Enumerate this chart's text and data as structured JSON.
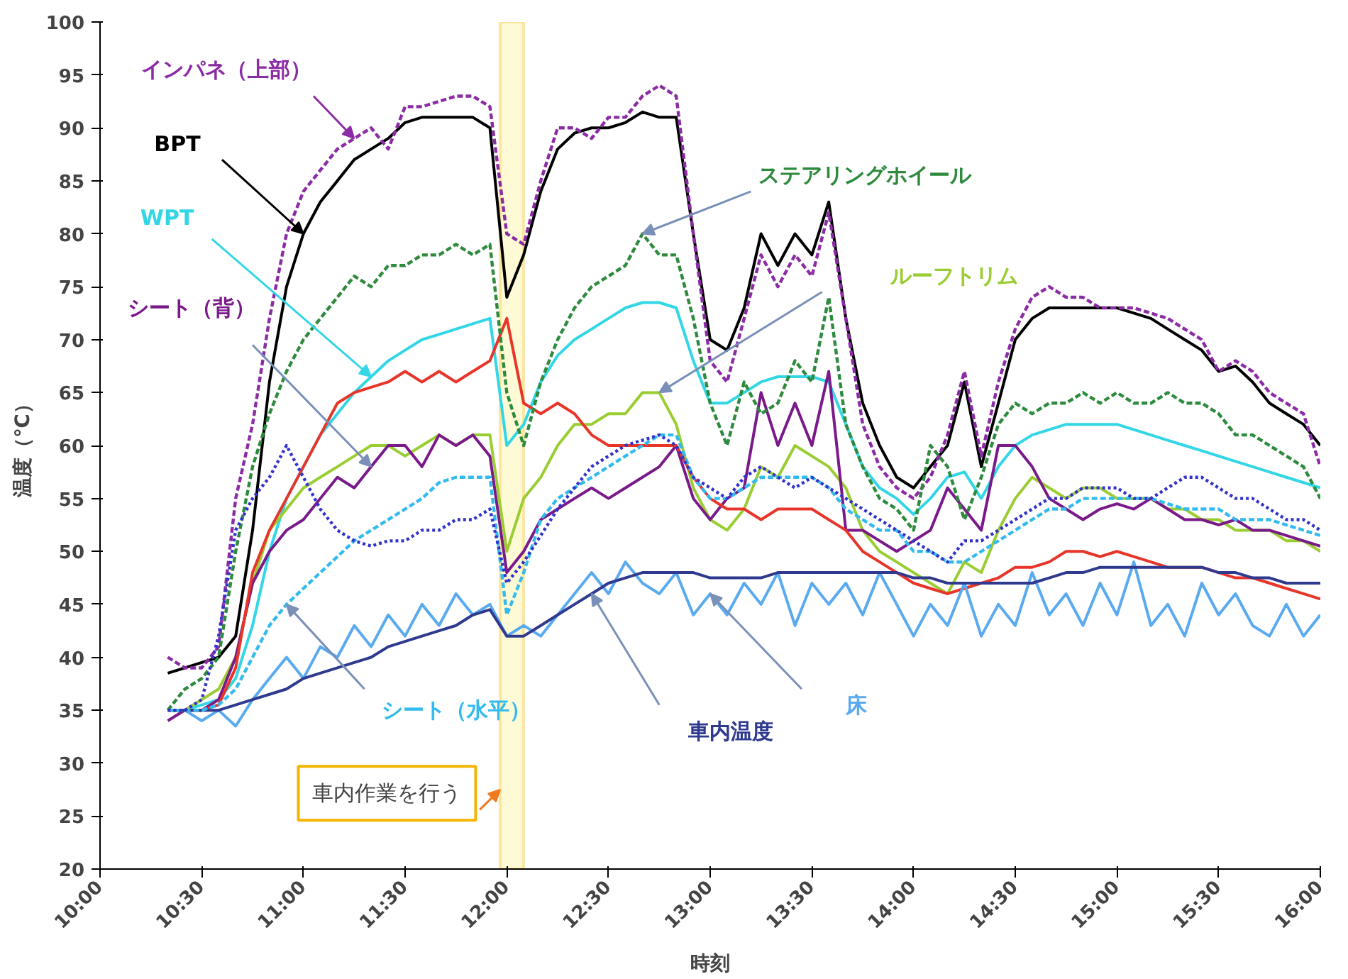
{
  "chart_data": {
    "type": "line",
    "xlabel": "時刻",
    "ylabel": "温度（℃）",
    "xlim": [
      10,
      16
    ],
    "ylim": [
      20,
      100
    ],
    "xticks": [
      {
        "value": 10,
        "label": "10:00"
      },
      {
        "value": 10.5,
        "label": "10:30"
      },
      {
        "value": 11,
        "label": "11:00"
      },
      {
        "value": 11.5,
        "label": "11:30"
      },
      {
        "value": 12,
        "label": "12:00"
      },
      {
        "value": 12.5,
        "label": "12:30"
      },
      {
        "value": 13,
        "label": "13:00"
      },
      {
        "value": 13.5,
        "label": "13:30"
      },
      {
        "value": 14,
        "label": "14:00"
      },
      {
        "value": 14.5,
        "label": "14:30"
      },
      {
        "value": 15,
        "label": "15:00"
      },
      {
        "value": 15.5,
        "label": "15:30"
      },
      {
        "value": 16,
        "label": "16:00"
      }
    ],
    "yticks": [
      20,
      25,
      30,
      35,
      40,
      45,
      50,
      55,
      60,
      65,
      70,
      75,
      80,
      85,
      90,
      95,
      100
    ],
    "grid": false,
    "x": [
      10.333,
      10.417,
      10.5,
      10.583,
      10.667,
      10.75,
      10.833,
      10.917,
      11,
      11.083,
      11.167,
      11.25,
      11.333,
      11.417,
      11.5,
      11.583,
      11.667,
      11.75,
      11.833,
      11.917,
      12,
      12.083,
      12.167,
      12.25,
      12.333,
      12.417,
      12.5,
      12.583,
      12.667,
      12.75,
      12.833,
      12.917,
      13,
      13.083,
      13.167,
      13.25,
      13.333,
      13.417,
      13.5,
      13.583,
      13.667,
      13.75,
      13.833,
      13.917,
      14,
      14.083,
      14.167,
      14.25,
      14.333,
      14.417,
      14.5,
      14.583,
      14.667,
      14.75,
      14.833,
      14.917,
      15,
      15.083,
      15.167,
      15.25,
      15.333,
      15.417,
      15.5,
      15.583,
      15.667,
      15.75,
      15.833,
      15.917,
      16
    ],
    "series": [
      {
        "name": "インパネ（上部）",
        "color": "#8b2ca5",
        "line_style": "dashed",
        "values": [
          40,
          39,
          39,
          41,
          55,
          62,
          72,
          80,
          84,
          86,
          88,
          89,
          90,
          88,
          92,
          92,
          92.5,
          93,
          93,
          92,
          80,
          79,
          85,
          90,
          90,
          89,
          91,
          91,
          93,
          94,
          93,
          80,
          68,
          66,
          72,
          78,
          75,
          78,
          76,
          82,
          72,
          62,
          58,
          56,
          55,
          57,
          61,
          67,
          59,
          66,
          71,
          74,
          75,
          74,
          74,
          73,
          73,
          73,
          72.5,
          72,
          71,
          70,
          67,
          68,
          67,
          65,
          64,
          63,
          58
        ]
      },
      {
        "name": "BPT",
        "color": "#000000",
        "line_style": "solid",
        "values": [
          38.5,
          39,
          39.5,
          40,
          42,
          52,
          66,
          75,
          80,
          83,
          85,
          87,
          88,
          89,
          90.5,
          91,
          91,
          91,
          91,
          90,
          74,
          78,
          84,
          88,
          89.5,
          90,
          90,
          90.5,
          91.5,
          91,
          91,
          80,
          70,
          69,
          73,
          80,
          77,
          80,
          78,
          83,
          72,
          64,
          60,
          57,
          56,
          58,
          60,
          66,
          58,
          64,
          70,
          72,
          73,
          73,
          73,
          73,
          73,
          72.5,
          72,
          71,
          70,
          69,
          67,
          67.5,
          66,
          64,
          63,
          62,
          60
        ]
      },
      {
        "name": "ステアリングホイール",
        "color": "#2e8b3e",
        "line_style": "dashed",
        "values": [
          35,
          37,
          38,
          40,
          50,
          58,
          63,
          67,
          70,
          72,
          74,
          76,
          75,
          77,
          77,
          78,
          78,
          79,
          78,
          79,
          65,
          60,
          66,
          70,
          73,
          75,
          76,
          77,
          80,
          78,
          78,
          72,
          64,
          60,
          66,
          63,
          64,
          68,
          66,
          74,
          62,
          58,
          55,
          54,
          52,
          60,
          58,
          53,
          57,
          62,
          64,
          63,
          64,
          64,
          65,
          64,
          65,
          64,
          64,
          65,
          64,
          64,
          63,
          61,
          61,
          60,
          59,
          58,
          55
        ]
      },
      {
        "name": "WPT",
        "color": "#33d6e6",
        "line_style": "solid",
        "values": [
          35,
          35,
          35.5,
          36,
          38,
          43,
          50,
          55,
          58,
          61,
          63,
          65,
          66.5,
          68,
          69,
          70,
          70.5,
          71,
          71.5,
          72,
          60,
          62,
          66,
          68.5,
          70,
          71,
          72,
          73,
          73.5,
          73.5,
          73,
          68,
          64,
          64,
          65,
          66,
          66.5,
          66.5,
          66.5,
          66,
          62,
          58,
          56,
          55,
          53.5,
          55,
          57,
          57.5,
          55,
          58,
          60,
          61,
          61.5,
          62,
          62,
          62,
          62,
          61.5,
          61,
          60.5,
          60,
          59.5,
          59,
          58.5,
          58,
          57.5,
          57,
          56.5,
          56
        ]
      },
      {
        "name": "ルーフトリム",
        "color": "#9acd32",
        "line_style": "solid",
        "values": [
          35,
          35,
          36,
          37,
          40,
          47,
          52,
          54,
          56,
          57,
          58,
          59,
          60,
          60,
          59,
          60,
          61,
          60,
          61,
          61,
          50,
          55,
          57,
          60,
          62,
          62,
          63,
          63,
          65,
          65,
          62,
          56,
          53,
          52,
          54,
          58,
          57,
          60,
          59,
          58,
          56,
          52,
          50,
          49,
          48,
          47,
          46,
          49,
          48,
          52,
          55,
          57,
          56,
          55,
          56,
          56,
          55,
          55,
          55,
          54,
          54,
          53,
          53,
          52,
          52,
          52,
          51,
          51,
          50
        ]
      },
      {
        "name": "シート（背）",
        "color": "#7a1a8a",
        "line_style": "solid",
        "values": [
          34,
          35,
          35,
          36,
          40,
          47,
          50,
          52,
          53,
          55,
          57,
          56,
          58,
          60,
          60,
          58,
          61,
          60,
          61,
          59,
          48,
          50,
          53,
          54,
          55,
          56,
          55,
          56,
          57,
          58,
          60,
          55,
          53,
          55,
          56,
          65,
          60,
          64,
          60,
          67,
          52,
          52,
          51,
          50,
          51,
          52,
          56,
          54,
          52,
          60,
          60,
          58,
          55,
          54,
          53,
          54,
          54.5,
          54,
          55,
          54,
          53,
          53,
          52.5,
          53,
          52,
          52,
          51.5,
          51,
          50.5
        ]
      },
      {
        "color": "#e8352a",
        "line_style": "solid",
        "values": [
          35,
          35,
          35,
          35.5,
          39,
          48,
          52,
          55,
          58,
          61,
          64,
          65,
          65.5,
          66,
          67,
          66,
          67,
          66,
          67,
          68,
          72,
          64,
          63,
          64,
          63,
          61,
          60,
          60,
          60,
          60,
          60,
          57,
          55,
          54,
          54,
          53,
          54,
          54,
          54,
          53,
          52,
          50,
          49,
          48,
          47,
          46.5,
          46,
          46.5,
          47,
          47.5,
          48.5,
          48.5,
          49,
          50,
          50,
          49.5,
          50,
          49.5,
          49,
          48.5,
          48.5,
          48.5,
          48,
          47.5,
          47.5,
          47,
          46.5,
          46,
          45.5
        ]
      },
      {
        "color": "#3333cc",
        "line_style": "dotted",
        "values": [
          35,
          35,
          36,
          42,
          52,
          55,
          57,
          60,
          57,
          54,
          52,
          51,
          50.5,
          51,
          51,
          52,
          52,
          53,
          53,
          54,
          47,
          49,
          51.5,
          54,
          56,
          58,
          59,
          60,
          60.5,
          61,
          60,
          57,
          56,
          55,
          57,
          58,
          57,
          56,
          57,
          56,
          55,
          54,
          53,
          52,
          51,
          50,
          49,
          51,
          51,
          52,
          53,
          54,
          55,
          55,
          56,
          56,
          56,
          55,
          55,
          56,
          57,
          57,
          56,
          55,
          55,
          54,
          53,
          53,
          52
        ]
      },
      {
        "name": "シート（水平）",
        "color": "#33bbee",
        "line_style": "dashed",
        "values": [
          35,
          35,
          35,
          35.5,
          37,
          40,
          43,
          45,
          46.5,
          48,
          49.5,
          51,
          52,
          53,
          54,
          55,
          56.5,
          57,
          57,
          57,
          44,
          48,
          53,
          55,
          56,
          57,
          58,
          59,
          60,
          61,
          61,
          57,
          55,
          55,
          56,
          57,
          57,
          57,
          57,
          56,
          54,
          53,
          52,
          52,
          50,
          50,
          49,
          49,
          50,
          51,
          52,
          53,
          54,
          54,
          55,
          55,
          55,
          55,
          55,
          54.5,
          54,
          54,
          54,
          53,
          53,
          53,
          52.5,
          52,
          51.5
        ]
      },
      {
        "name": "床",
        "color": "#5aaaf0",
        "line_style": "solid",
        "values": [
          35,
          35,
          34,
          35,
          33.5,
          36,
          38,
          40,
          38,
          41,
          40,
          43,
          41,
          44,
          42,
          45,
          43,
          46,
          44,
          45,
          42,
          43,
          42,
          44,
          46,
          48,
          46,
          49,
          47,
          46,
          48,
          44,
          46,
          44,
          47,
          45,
          48,
          43,
          47,
          45,
          47,
          44,
          48,
          45,
          42,
          45,
          43,
          47,
          42,
          45,
          43,
          48,
          44,
          46,
          43,
          47,
          44,
          49,
          43,
          45,
          42,
          47,
          44,
          46,
          43,
          42,
          45,
          42,
          44
        ]
      },
      {
        "name": "車内温度",
        "color": "#2f3a8f",
        "line_style": "solid",
        "values": [
          35,
          35,
          35,
          35,
          35.5,
          36,
          36.5,
          37,
          38,
          38.5,
          39,
          39.5,
          40,
          41,
          41.5,
          42,
          42.5,
          43,
          44,
          44.5,
          42,
          42,
          43,
          44,
          45,
          46,
          47,
          47.5,
          48,
          48,
          48,
          48,
          47.5,
          47.5,
          47.5,
          47.5,
          48,
          48,
          48,
          48,
          48,
          48,
          48,
          48,
          47.5,
          47.5,
          47,
          47,
          47,
          47,
          47,
          47,
          47.5,
          48,
          48,
          48.5,
          48.5,
          48.5,
          48.5,
          48.5,
          48.5,
          48.5,
          48,
          48,
          47.5,
          47.5,
          47,
          47,
          47
        ]
      }
    ],
    "bands": [
      {
        "axis": "x",
        "from": 11.967,
        "to": 12.083,
        "label": "車内作業を行う",
        "color": "#fff8c8"
      }
    ]
  }
}
